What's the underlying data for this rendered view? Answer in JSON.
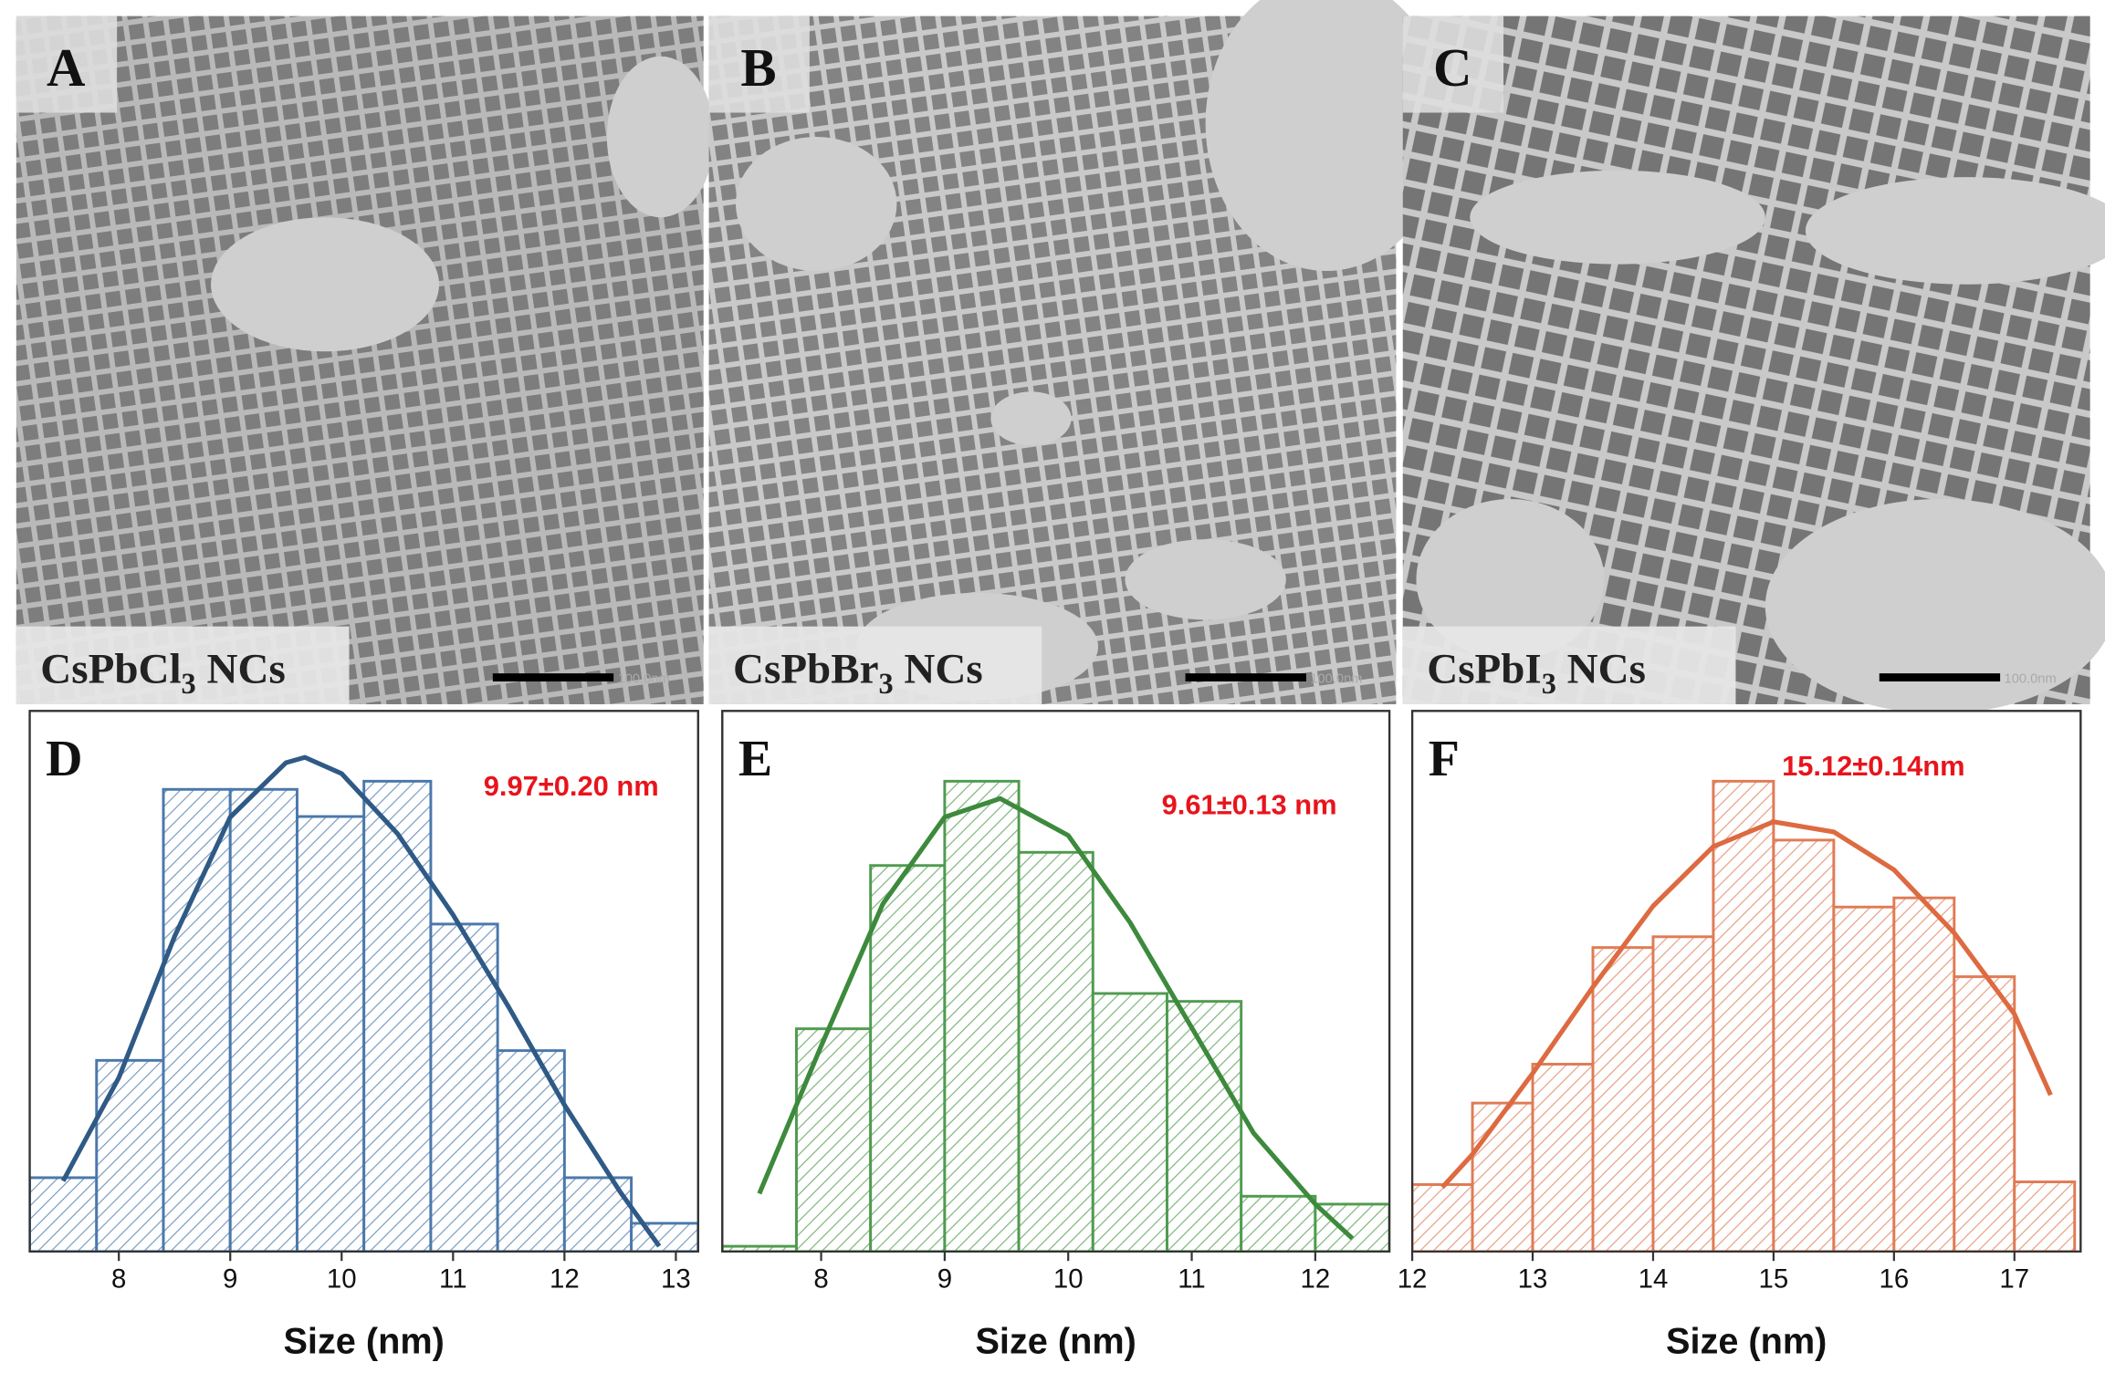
{
  "images": [
    {
      "panel_label": "A",
      "formula": "CsPbCl",
      "subscript": "3",
      "suffix": "NCs",
      "scale_bar": "100.0nm"
    },
    {
      "panel_label": "B",
      "formula": "CsPbBr",
      "subscript": "3",
      "suffix": "NCs",
      "scale_bar": "100.0nm"
    },
    {
      "panel_label": "C",
      "formula": "CsPbI",
      "subscript": "3",
      "suffix": "NCs",
      "scale_bar": "100.0nm"
    }
  ],
  "chart_data": [
    {
      "type": "histogram",
      "panel_label": "D",
      "annotation": "9.97±0.20 nm",
      "xlabel": "Size (nm)",
      "bins": [
        7.2,
        7.8,
        8.4,
        9.0,
        9.6,
        10.2,
        10.8,
        11.4,
        12.0,
        12.6,
        13.2
      ],
      "values": [
        13.6,
        35.2,
        85.1,
        85.1,
        80.1,
        86.6,
        60.3,
        37.0,
        13.6,
        5.2
      ],
      "color": "#4a78ab",
      "curve": {
        "x": [
          7.5,
          8,
          8.5,
          9,
          9.5,
          9.67,
          10,
          10.5,
          11,
          11.5,
          12,
          12.5,
          12.85
        ],
        "values": [
          13,
          32,
          58,
          80,
          90,
          91,
          88,
          77,
          62,
          45,
          27,
          11,
          1
        ],
        "color": "#2f5a86"
      },
      "xlim": [
        7.2,
        13.2
      ],
      "xticks": [
        8,
        9,
        10,
        11,
        12,
        13
      ]
    },
    {
      "type": "histogram",
      "panel_label": "E",
      "annotation": "9.61±0.13 nm",
      "xlabel": "Size (nm)",
      "bins": [
        7.2,
        7.8,
        8.4,
        9.0,
        9.6,
        10.2,
        10.8,
        11.4,
        12.0,
        12.6
      ],
      "values": [
        1,
        42.3,
        73.3,
        89.3,
        75.8,
        49,
        47.5,
        10.5,
        9
      ],
      "color": "#4f9b4f",
      "curve": {
        "x": [
          7.5,
          8,
          8.5,
          9,
          9.45,
          10,
          10.5,
          11,
          11.5,
          12,
          12.3
        ],
        "values": [
          11,
          39,
          66,
          82.5,
          86,
          79,
          62.5,
          42.5,
          22.5,
          9,
          2.5
        ],
        "color": "#3d8a3d"
      },
      "xlim": [
        7.2,
        12.6
      ],
      "xticks": [
        8,
        9,
        10,
        11,
        12
      ]
    },
    {
      "type": "histogram",
      "panel_label": "F",
      "annotation": "15.12±0.14nm",
      "xlabel": "Size (nm)",
      "bins": [
        12,
        12.5,
        13,
        13.5,
        14,
        14.5,
        15,
        15.5,
        16,
        16.5,
        17,
        17.5
      ],
      "values": [
        12.4,
        27.5,
        34.7,
        56.3,
        58.3,
        87.1,
        76.2,
        63.8,
        65.5,
        50.9,
        12.9
      ],
      "color": "#e07b55",
      "curve": {
        "x": [
          12.25,
          12.5,
          13,
          13.5,
          14,
          14.5,
          15,
          15.5,
          16,
          16.5,
          17,
          17.3
        ],
        "values": [
          11.9,
          18,
          33,
          49,
          64,
          75,
          79.6,
          77.7,
          70.7,
          59,
          44,
          29
        ],
        "color": "#dd6a40"
      },
      "xlim": [
        12,
        17.55
      ],
      "xticks": [
        12,
        13,
        14,
        15,
        16,
        17
      ]
    }
  ]
}
